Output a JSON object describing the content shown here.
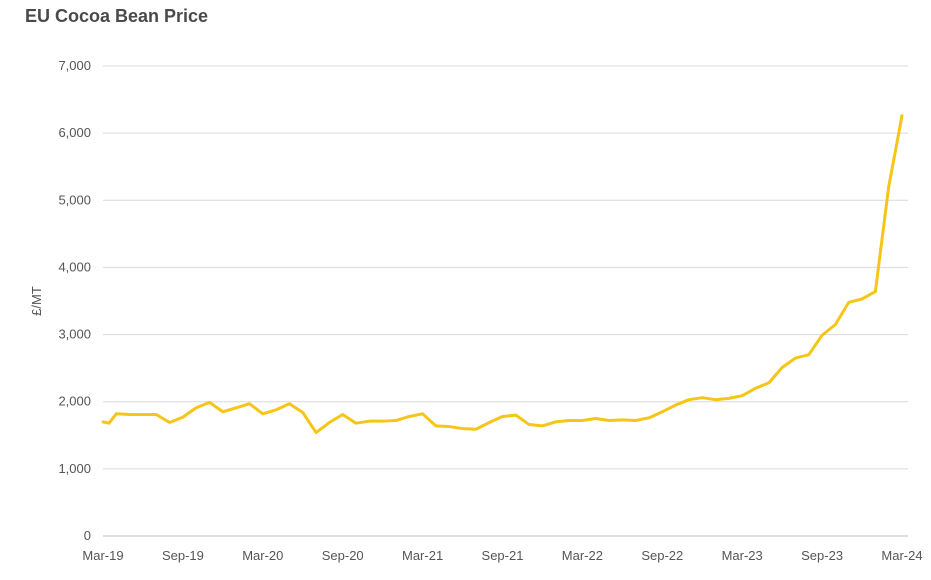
{
  "chart_data": {
    "type": "line",
    "title": "EU Cocoa Bean Price",
    "xlabel": "",
    "ylabel": "£/MT",
    "ylim": [
      0,
      7000
    ],
    "yticks": [
      0,
      1000,
      2000,
      3000,
      4000,
      5000,
      6000,
      7000
    ],
    "ytick_labels": [
      "0",
      "1,000",
      "2,000",
      "3,000",
      "4,000",
      "5,000",
      "6,000",
      "7,000"
    ],
    "xtick_labels": [
      "Mar-19",
      "Sep-19",
      "Mar-20",
      "Sep-20",
      "Mar-21",
      "Sep-21",
      "Mar-22",
      "Sep-22",
      "Mar-23",
      "Sep-23",
      "Mar-24"
    ],
    "grid": true,
    "line_color": "#f5c518",
    "series": [
      {
        "x": [
          "Mar-19",
          "Apr-19",
          "May-19",
          "Jun-19",
          "Jul-19",
          "Aug-19",
          "Sep-19",
          "Oct-19",
          "Nov-19",
          "Dec-19",
          "Jan-20",
          "Feb-20",
          "Mar-20",
          "Apr-20",
          "May-20",
          "Jun-20",
          "Jul-20",
          "Aug-20",
          "Sep-20",
          "Oct-20",
          "Nov-20",
          "Dec-20",
          "Jan-21",
          "Feb-21",
          "Mar-21",
          "Apr-21",
          "May-21",
          "Jun-21",
          "Jul-21",
          "Aug-21",
          "Sep-21",
          "Oct-21",
          "Nov-21",
          "Dec-21",
          "Jan-22",
          "Feb-22",
          "Mar-22",
          "Apr-22",
          "May-22",
          "Jun-22",
          "Jul-22",
          "Aug-22",
          "Sep-22",
          "Oct-22",
          "Nov-22",
          "Dec-22",
          "Jan-23",
          "Feb-23",
          "Mar-23",
          "Apr-23",
          "May-23",
          "Jun-23",
          "Jul-23",
          "Aug-23",
          "Sep-23",
          "Oct-23",
          "Nov-23",
          "Dec-23",
          "Jan-24",
          "Feb-24",
          "Mar-24"
        ],
        "values": [
          1680,
          1820,
          1810,
          1810,
          1810,
          1690,
          1770,
          1910,
          1990,
          1850,
          1910,
          1970,
          1820,
          1880,
          1970,
          1840,
          1540,
          1690,
          1810,
          1680,
          1710,
          1710,
          1720,
          1780,
          1820,
          1640,
          1630,
          1600,
          1590,
          1690,
          1780,
          1800,
          1660,
          1640,
          1700,
          1720,
          1720,
          1750,
          1720,
          1730,
          1720,
          1760,
          1850,
          1950,
          2030,
          2060,
          2030,
          2050,
          2090,
          2200,
          2280,
          2510,
          2650,
          2700,
          2990,
          3150,
          3480,
          3530,
          3640,
          5200,
          6260
        ],
        "first_value": 1700
      }
    ]
  }
}
